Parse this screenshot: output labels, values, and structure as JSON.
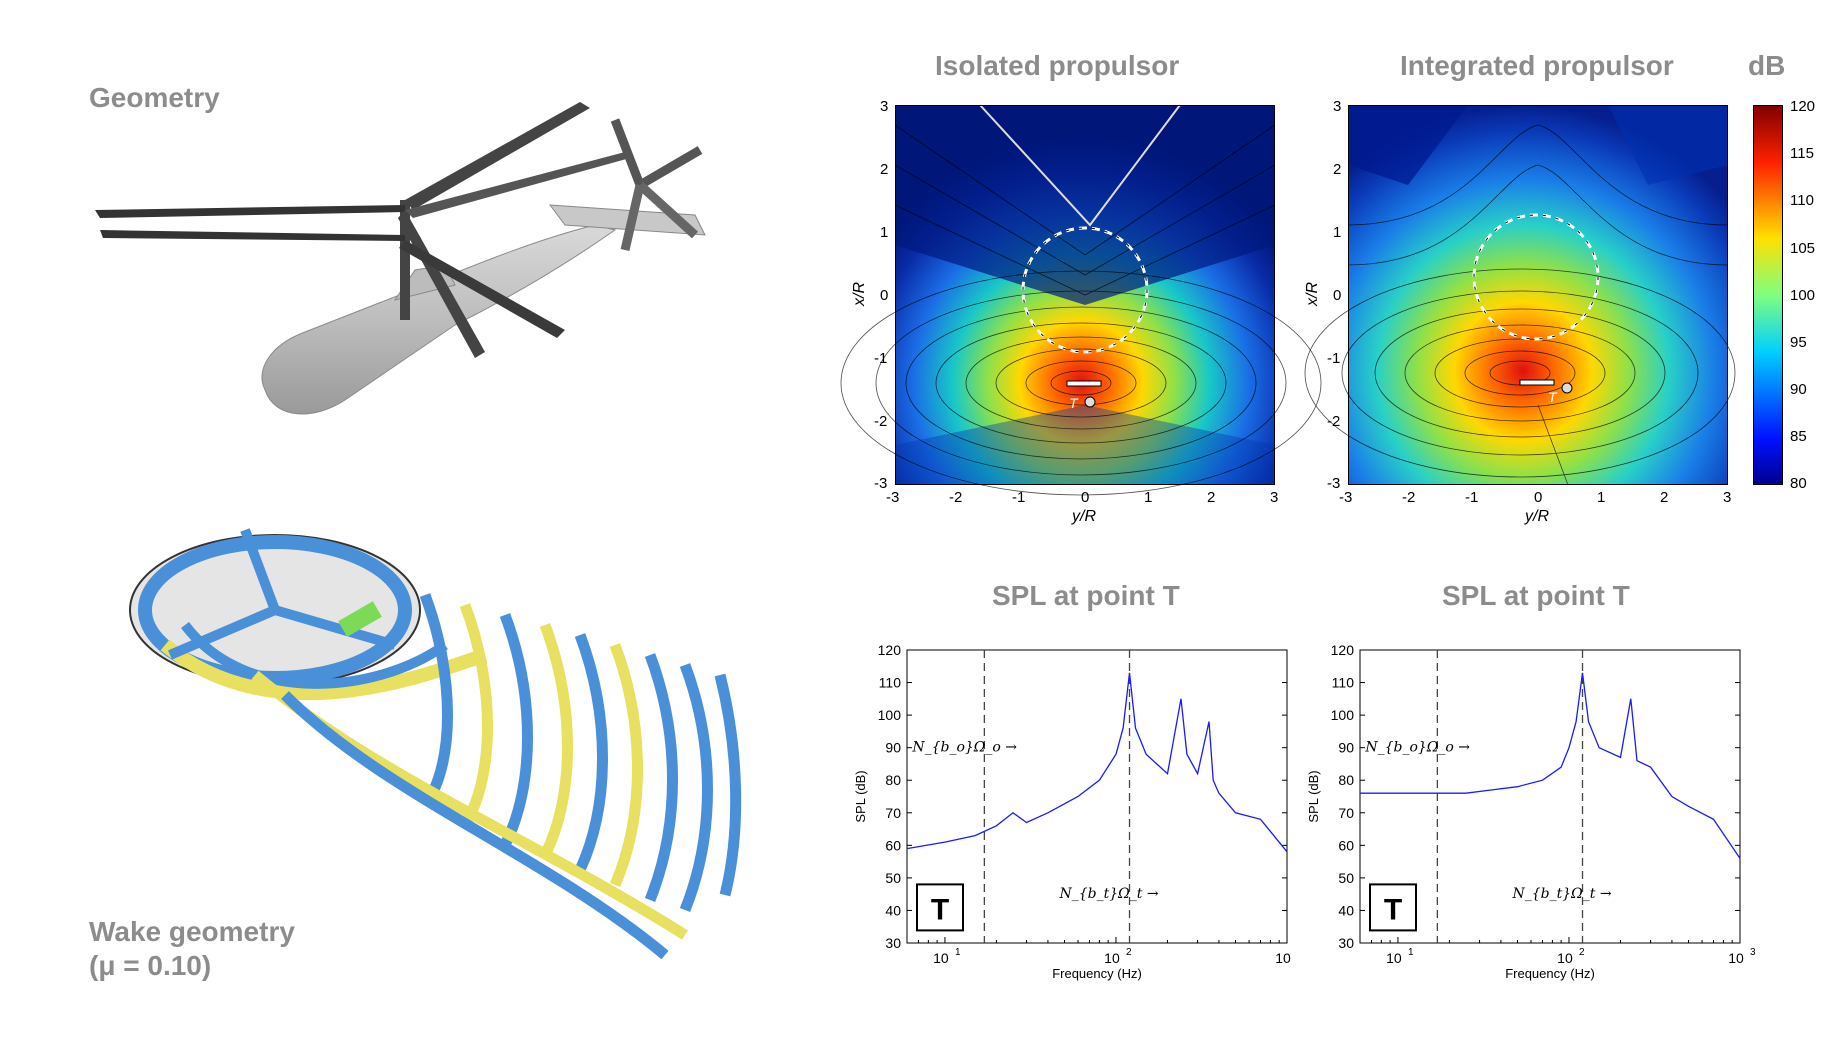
{
  "left": {
    "geometry_label": "Geometry",
    "wake_label_line1": "Wake geometry",
    "wake_label_line2": "(μ = 0.10)"
  },
  "contour_colorbar": {
    "unit": "dB",
    "ticks": [
      "120",
      "115",
      "110",
      "105",
      "100",
      "95",
      "90",
      "85",
      "80"
    ],
    "range": [
      80,
      120
    ]
  },
  "contour_left": {
    "title": "Isolated propulsor",
    "xlabel": "y/R",
    "ylabel": "x/R",
    "xticks": [
      "-3",
      "-2",
      "-1",
      "0",
      "1",
      "2",
      "3"
    ],
    "yticks": [
      "3",
      "2",
      "1",
      "0",
      "-1",
      "-2",
      "-3"
    ],
    "point_label": "T"
  },
  "contour_right": {
    "title": "Integrated propulsor",
    "xlabel": "y/R",
    "ylabel": "x/R",
    "xticks": [
      "-3",
      "-2",
      "-1",
      "0",
      "1",
      "2",
      "3"
    ],
    "yticks": [
      "3",
      "2",
      "1",
      "0",
      "-1",
      "-2",
      "-3"
    ],
    "point_label": "T"
  },
  "chart_data": [
    {
      "type": "line",
      "title": "SPL at point T",
      "xlabel": "Frequency (Hz)",
      "ylabel": "SPL (dB)",
      "xscale": "log",
      "xlim": [
        6,
        1000
      ],
      "ylim": [
        30,
        120
      ],
      "yticks": [
        "120",
        "110",
        "100",
        "90",
        "80",
        "70",
        "60",
        "50",
        "40",
        "30"
      ],
      "xticks": [
        "10",
        "10",
        "10"
      ],
      "xtick_exponents": [
        "1",
        "2",
        ""
      ],
      "box_label": "T",
      "annotation_rotor": "N_{b_o}Ω_o →",
      "annotation_tail": "N_{b_t}Ω_t →",
      "vlines": [
        17,
        120
      ],
      "series": [
        {
          "x": [
            6,
            10,
            15,
            20,
            25,
            30,
            40,
            60,
            80,
            100,
            110,
            120,
            130,
            150,
            200,
            240,
            260,
            300,
            350,
            370,
            400,
            500,
            700,
            1000
          ],
          "y": [
            59,
            61,
            63,
            66,
            70,
            67,
            70,
            75,
            80,
            88,
            96,
            113,
            96,
            88,
            82,
            105,
            88,
            82,
            98,
            80,
            76,
            70,
            68,
            58
          ]
        }
      ]
    },
    {
      "type": "line",
      "title": "SPL at point T",
      "xlabel": "Frequency (Hz)",
      "ylabel": "SPL (dB)",
      "xscale": "log",
      "xlim": [
        6,
        1000
      ],
      "ylim": [
        30,
        120
      ],
      "yticks": [
        "120",
        "110",
        "100",
        "90",
        "80",
        "70",
        "60",
        "50",
        "40",
        "30"
      ],
      "xticks": [
        "10",
        "10",
        "10"
      ],
      "xtick_exponents": [
        "1",
        "2",
        "3"
      ],
      "box_label": "T",
      "annotation_rotor": "N_{b_o}Ω_o →",
      "annotation_tail": "N_{b_t}Ω_t →",
      "vlines": [
        17,
        120
      ],
      "series": [
        {
          "x": [
            6,
            10,
            17,
            25,
            35,
            50,
            70,
            90,
            100,
            110,
            120,
            130,
            150,
            200,
            230,
            250,
            300,
            400,
            500,
            700,
            1000
          ],
          "y": [
            76,
            76,
            76,
            76,
            77,
            78,
            80,
            84,
            90,
            98,
            113,
            98,
            90,
            87,
            105,
            86,
            84,
            75,
            72,
            68,
            56
          ]
        }
      ]
    }
  ]
}
